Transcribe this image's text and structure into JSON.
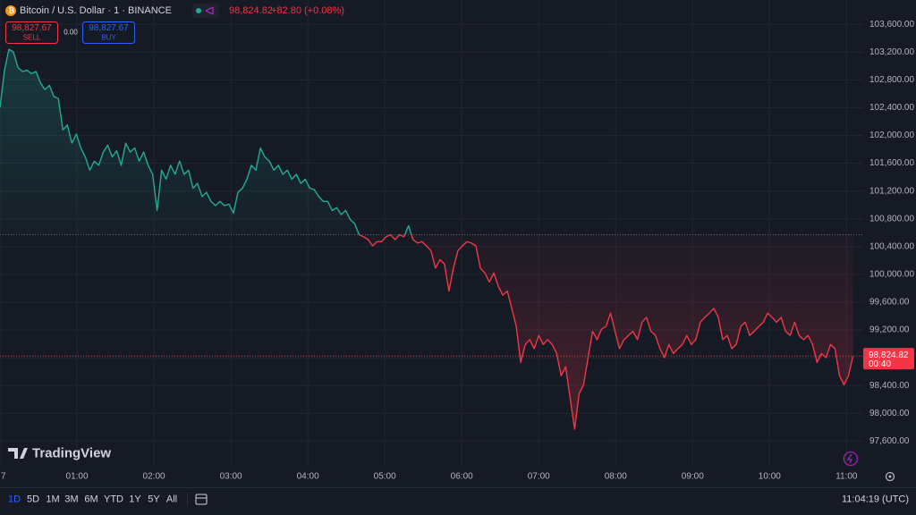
{
  "chart_data": {
    "type": "line",
    "x": [
      0,
      3.5,
      7,
      10.5,
      14,
      17.5,
      21,
      24.5,
      28,
      31.5,
      35,
      38.5,
      42,
      45.5,
      49,
      52.5,
      56,
      59.5,
      63,
      66.5,
      70,
      73.5,
      77,
      80.5,
      84,
      87.5,
      91,
      94.5,
      98,
      101.5,
      105,
      108.5,
      112,
      115.5,
      119,
      122.5,
      126,
      129.5,
      133,
      136.5,
      140,
      143.5,
      147,
      150.5,
      154,
      157.5,
      161,
      164.5,
      168,
      171.5,
      175,
      178.5,
      182,
      185.5,
      189,
      192.5,
      196,
      199.5,
      203,
      206.5,
      210,
      213.5,
      217,
      220.5,
      224,
      227.5,
      231,
      234.5,
      238,
      241.5,
      245,
      248.5,
      252,
      255.5,
      259,
      262.5,
      266,
      269.5,
      273,
      276.5,
      280,
      283.5,
      287,
      290.5,
      294,
      297.5,
      301,
      304.5,
      308,
      311.5,
      315,
      318.5,
      322,
      325.5,
      329,
      332.5,
      336,
      339.5,
      343,
      346.5,
      350,
      353.5,
      357,
      360.5,
      364,
      367.5,
      371,
      374.5,
      378,
      381.5,
      385,
      388.5,
      392,
      395.5,
      399,
      402.5,
      406,
      409.5,
      413,
      416.5,
      420,
      423.5,
      427,
      430.5,
      434,
      437.5,
      441,
      444.5,
      448,
      451.5,
      455,
      458.5,
      462,
      465.5,
      469,
      472.5,
      476,
      479.5,
      483,
      486.5,
      490,
      493.5,
      497,
      500.5,
      504,
      507.5,
      511,
      514.5,
      518,
      521.5,
      525,
      528.5,
      532,
      535.5,
      539,
      542.5,
      546,
      549.5,
      553,
      556.5,
      560,
      563.5,
      567,
      570.5,
      574,
      577.5,
      581,
      584.5,
      588,
      591.5,
      595,
      598.5,
      602,
      605.5,
      609,
      612.5,
      616,
      619.5,
      623,
      626.5,
      630,
      633.5,
      637,
      640.5,
      644,
      647.5,
      651,
      654.5,
      658,
      661.5,
      665
    ],
    "values": [
      102400,
      102940,
      103240,
      103200,
      102980,
      102920,
      102940,
      102890,
      102920,
      102760,
      102660,
      102720,
      102560,
      102530,
      102080,
      102150,
      101890,
      102020,
      101820,
      101690,
      101500,
      101630,
      101570,
      101760,
      101860,
      101690,
      101780,
      101570,
      101890,
      101760,
      101820,
      101630,
      101760,
      101570,
      101440,
      100920,
      101500,
      101370,
      101570,
      101440,
      101630,
      101440,
      101500,
      101240,
      101310,
      101120,
      101180,
      101050,
      100990,
      101050,
      100990,
      101010,
      100880,
      101180,
      101240,
      101370,
      101570,
      101500,
      101820,
      101690,
      101630,
      101500,
      101570,
      101440,
      101500,
      101370,
      101440,
      101310,
      101370,
      101240,
      101220,
      101120,
      101050,
      101050,
      100920,
      100960,
      100860,
      100920,
      100790,
      100730,
      100570,
      100540,
      100500,
      100410,
      100470,
      100470,
      100540,
      100570,
      100500,
      100570,
      100540,
      100700,
      100500,
      100450,
      100470,
      100410,
      100340,
      100090,
      100210,
      100150,
      99760,
      100090,
      100340,
      100410,
      100470,
      100450,
      100410,
      100090,
      100020,
      99890,
      100020,
      99830,
      99700,
      99760,
      99510,
      99250,
      98730,
      98990,
      99060,
      98930,
      99120,
      98990,
      99060,
      98990,
      98860,
      98540,
      98670,
      98220,
      97770,
      98280,
      98410,
      98800,
      99180,
      99060,
      99210,
      99250,
      99440,
      99180,
      98930,
      99060,
      99120,
      99180,
      99060,
      99310,
      99380,
      99180,
      99120,
      98930,
      98800,
      98990,
      98860,
      98930,
      98990,
      99120,
      98990,
      99060,
      99310,
      99380,
      99440,
      99510,
      99380,
      99060,
      99120,
      98930,
      98990,
      99250,
      99310,
      99120,
      99180,
      99250,
      99310,
      99440,
      99380,
      99310,
      99380,
      99180,
      99120,
      99310,
      99120,
      99060,
      99120,
      98990,
      98730,
      98860,
      98800,
      98990,
      98930,
      98540,
      98410,
      98540,
      98820
    ],
    "baseline": 100570,
    "up_color": "#22ab94",
    "down_color": "#f23645",
    "xlim": [
      0,
      673
    ],
    "ylim": [
      97230,
      103950
    ],
    "xticks": [
      {
        "value": 0,
        "label": "7"
      },
      {
        "value": 60,
        "label": "01:00"
      },
      {
        "value": 120,
        "label": "02:00"
      },
      {
        "value": 180,
        "label": "03:00"
      },
      {
        "value": 240,
        "label": "04:00"
      },
      {
        "value": 300,
        "label": "05:00"
      },
      {
        "value": 360,
        "label": "06:00"
      },
      {
        "value": 420,
        "label": "07:00"
      },
      {
        "value": 480,
        "label": "08:00"
      },
      {
        "value": 540,
        "label": "09:00"
      },
      {
        "value": 600,
        "label": "10:00"
      },
      {
        "value": 660,
        "label": "11:00"
      }
    ],
    "yticks": [
      {
        "value": 97600,
        "label": "97,600.00"
      },
      {
        "value": 98000,
        "label": "98,000.00"
      },
      {
        "value": 98400,
        "label": "98,400.00"
      },
      {
        "value": 98800,
        "label": "98,800.00"
      },
      {
        "value": 99200,
        "label": "99,200.00"
      },
      {
        "value": 99600,
        "label": "99,600.00"
      },
      {
        "value": 100000,
        "label": "100,000.00"
      },
      {
        "value": 100400,
        "label": "100,400.00"
      },
      {
        "value": 100800,
        "label": "100,800.00"
      },
      {
        "value": 101200,
        "label": "101,200.00"
      },
      {
        "value": 101600,
        "label": "101,600.00"
      },
      {
        "value": 102000,
        "label": "102,000.00"
      },
      {
        "value": 102400,
        "label": "102,400.00"
      },
      {
        "value": 102800,
        "label": "102,800.00"
      },
      {
        "value": 103200,
        "label": "103,200.00"
      },
      {
        "value": 103600,
        "label": "103,600.00"
      }
    ],
    "grid": true,
    "last_price": {
      "value": 98824.82,
      "label": "98,824.82"
    },
    "countdown": "00:40"
  },
  "header": {
    "symbol": "Bitcoin / U.S. Dollar · 1 · BINANCE",
    "price": "98,824.82",
    "change": "+82.80 (+0.08%)"
  },
  "trade": {
    "sell_price": "98,827.67",
    "sell_label": "SELL",
    "spread": "0.00",
    "buy_price": "98,827.67",
    "buy_label": "BUY"
  },
  "watermark": "TradingView",
  "toolbar": {
    "ranges": [
      "1D",
      "5D",
      "1M",
      "3M",
      "6M",
      "YTD",
      "1Y",
      "5Y",
      "All"
    ],
    "clock": "11:04:19 (UTC)"
  }
}
